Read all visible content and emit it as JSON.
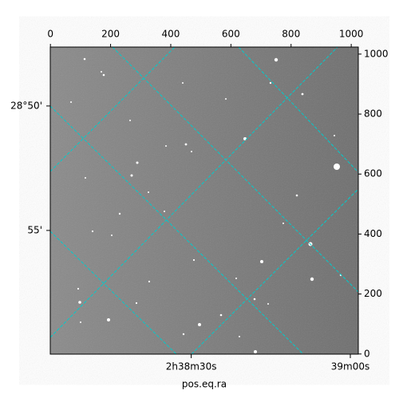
{
  "chart_data": {
    "type": "image",
    "xlabel": "pos.eq.ra",
    "xlim": [
      -0.5,
      1023.5
    ],
    "ylim": [
      -0.5,
      1023.5
    ],
    "xticks": [
      0,
      200,
      400,
      600,
      800,
      1000
    ],
    "yticks": [
      0,
      200,
      400,
      600,
      800,
      1000
    ],
    "world_xticks": [
      {
        "value": 468,
        "label": "2h38m30s"
      },
      {
        "value": 997,
        "label": "39m00s"
      }
    ],
    "world_yticks": [
      {
        "value": 827,
        "label": "28°50'"
      },
      {
        "value": 412,
        "label": "55'"
      }
    ],
    "grid": true,
    "grid_color": "#00cccc"
  }
}
